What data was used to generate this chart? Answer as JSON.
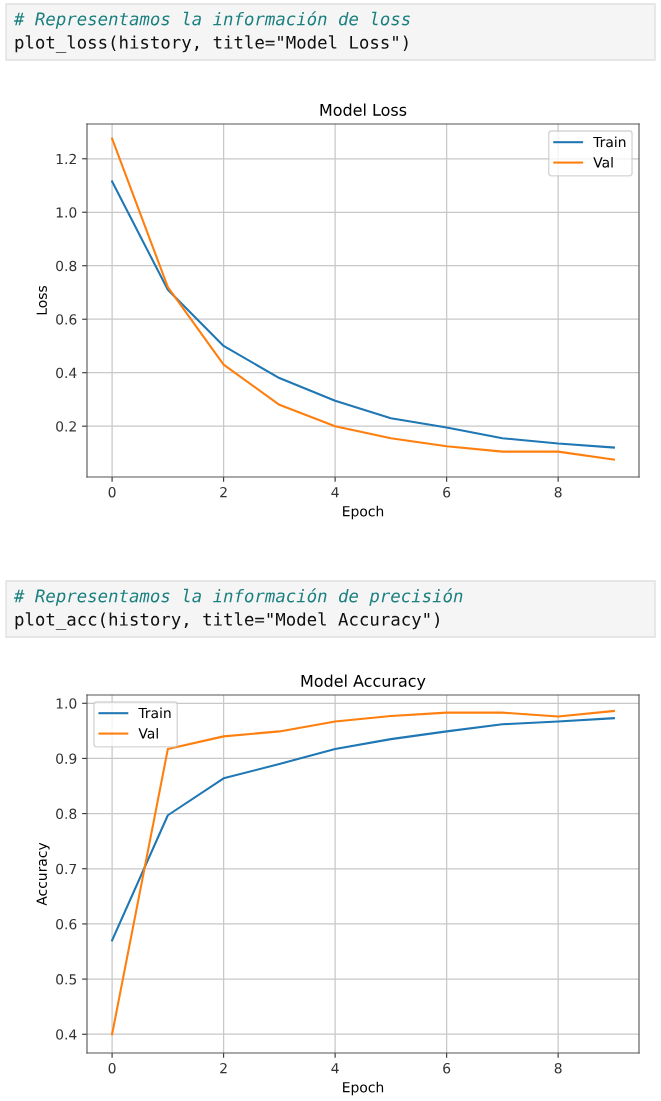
{
  "chart_data": [
    {
      "type": "line",
      "title": "Model Loss",
      "xlabel": "Epoch",
      "ylabel": "Loss",
      "annotations": [
        "# Representamos la información de loss",
        "plot_loss(history, title=\"Model Loss\")"
      ],
      "x": [
        0,
        1,
        2,
        3,
        4,
        5,
        6,
        7,
        8,
        9
      ],
      "series": [
        {
          "name": "Train",
          "color": "#1f77b4",
          "values": [
            1.115,
            0.71,
            0.5,
            0.38,
            0.295,
            0.23,
            0.195,
            0.155,
            0.135,
            0.12
          ]
        },
        {
          "name": "Val",
          "color": "#ff7f0e",
          "values": [
            1.275,
            0.72,
            0.43,
            0.28,
            0.2,
            0.155,
            0.125,
            0.105,
            0.105,
            0.075
          ]
        }
      ],
      "xlim": [
        -0.45,
        9.45
      ],
      "ylim": [
        0.01,
        1.33
      ],
      "xticks": [
        0,
        2,
        4,
        6,
        8
      ],
      "yticks": [
        0.2,
        0.4,
        0.6,
        0.8,
        {
          "value": 1,
          "label": "1.0"
        },
        1.2
      ],
      "grid": true,
      "legend": "top right"
    },
    {
      "type": "line",
      "title": "Model Accuracy",
      "xlabel": "Epoch",
      "ylabel": "Accuracy",
      "annotations": [
        "# Representamos la información de precisión",
        "plot_acc(history, title=\"Model Accuracy\")"
      ],
      "x": [
        0,
        1,
        2,
        3,
        4,
        5,
        6,
        7,
        8,
        9
      ],
      "series": [
        {
          "name": "Train",
          "color": "#1f77b4",
          "values": [
            0.57,
            0.797,
            0.864,
            0.89,
            0.917,
            0.935,
            0.949,
            0.962,
            0.967,
            0.973
          ]
        },
        {
          "name": "Val",
          "color": "#ff7f0e",
          "values": [
            0.4,
            0.917,
            0.94,
            0.949,
            0.967,
            0.977,
            0.983,
            0.983,
            0.976,
            0.986
          ]
        }
      ],
      "xlim": [
        -0.45,
        9.45
      ],
      "ylim": [
        0.366,
        1.015
      ],
      "xticks": [
        0,
        2,
        4,
        6,
        8
      ],
      "yticks": [
        0.4,
        0.5,
        0.6,
        0.7,
        0.8,
        0.9,
        {
          "value": 1,
          "label": "1.0"
        }
      ],
      "grid": true,
      "legend": "top left"
    }
  ]
}
